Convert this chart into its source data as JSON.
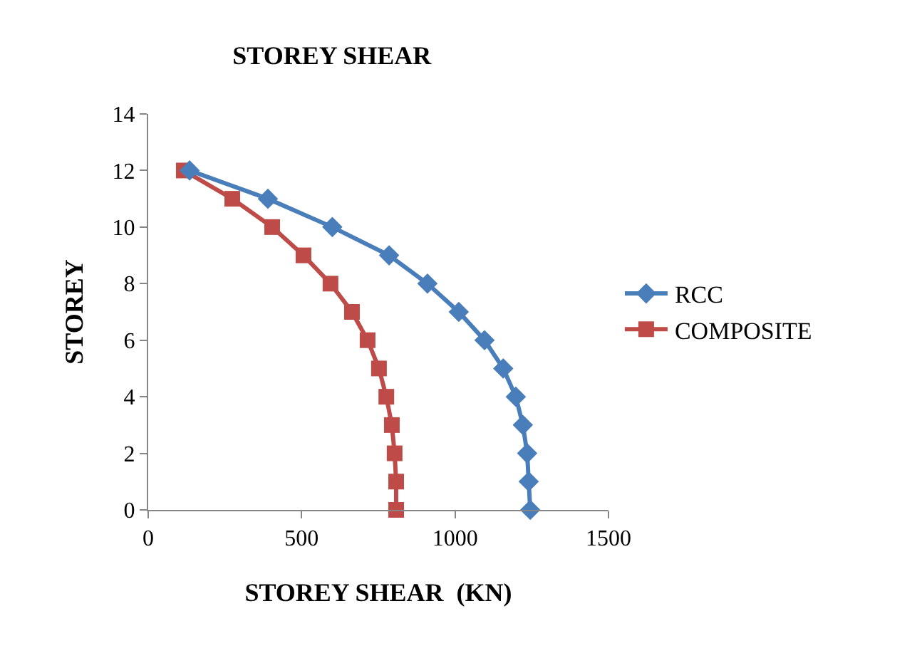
{
  "chart_data": {
    "type": "line",
    "title": "STOREY SHEAR",
    "xlabel": "STOREY SHEAR  (KN)",
    "ylabel": "STOREY",
    "series": [
      {
        "name": "RCC",
        "color": "#4a7ebb",
        "marker": "diamond",
        "x": [
          1245,
          1240,
          1235,
          1221,
          1198,
          1157,
          1096,
          1012,
          910,
          785,
          600,
          390,
          135
        ],
        "values": [
          0,
          1,
          2,
          3,
          4,
          5,
          6,
          7,
          8,
          9,
          10,
          11,
          12
        ]
      },
      {
        "name": "COMPOSITE",
        "color": "#be4b48",
        "marker": "square",
        "x": [
          808,
          808,
          803,
          794,
          776,
          752,
          715,
          664,
          594,
          506,
          404,
          274,
          116
        ],
        "values": [
          0,
          1,
          2,
          3,
          4,
          5,
          6,
          7,
          8,
          9,
          10,
          11,
          12
        ]
      }
    ],
    "xlim": [
      0,
      1500
    ],
    "xticks": [
      0,
      500,
      1000,
      1500
    ],
    "ylim": [
      0,
      14
    ],
    "yticks": [
      0,
      2,
      4,
      6,
      8,
      10,
      12,
      14
    ],
    "grid": false,
    "legend": "right"
  }
}
